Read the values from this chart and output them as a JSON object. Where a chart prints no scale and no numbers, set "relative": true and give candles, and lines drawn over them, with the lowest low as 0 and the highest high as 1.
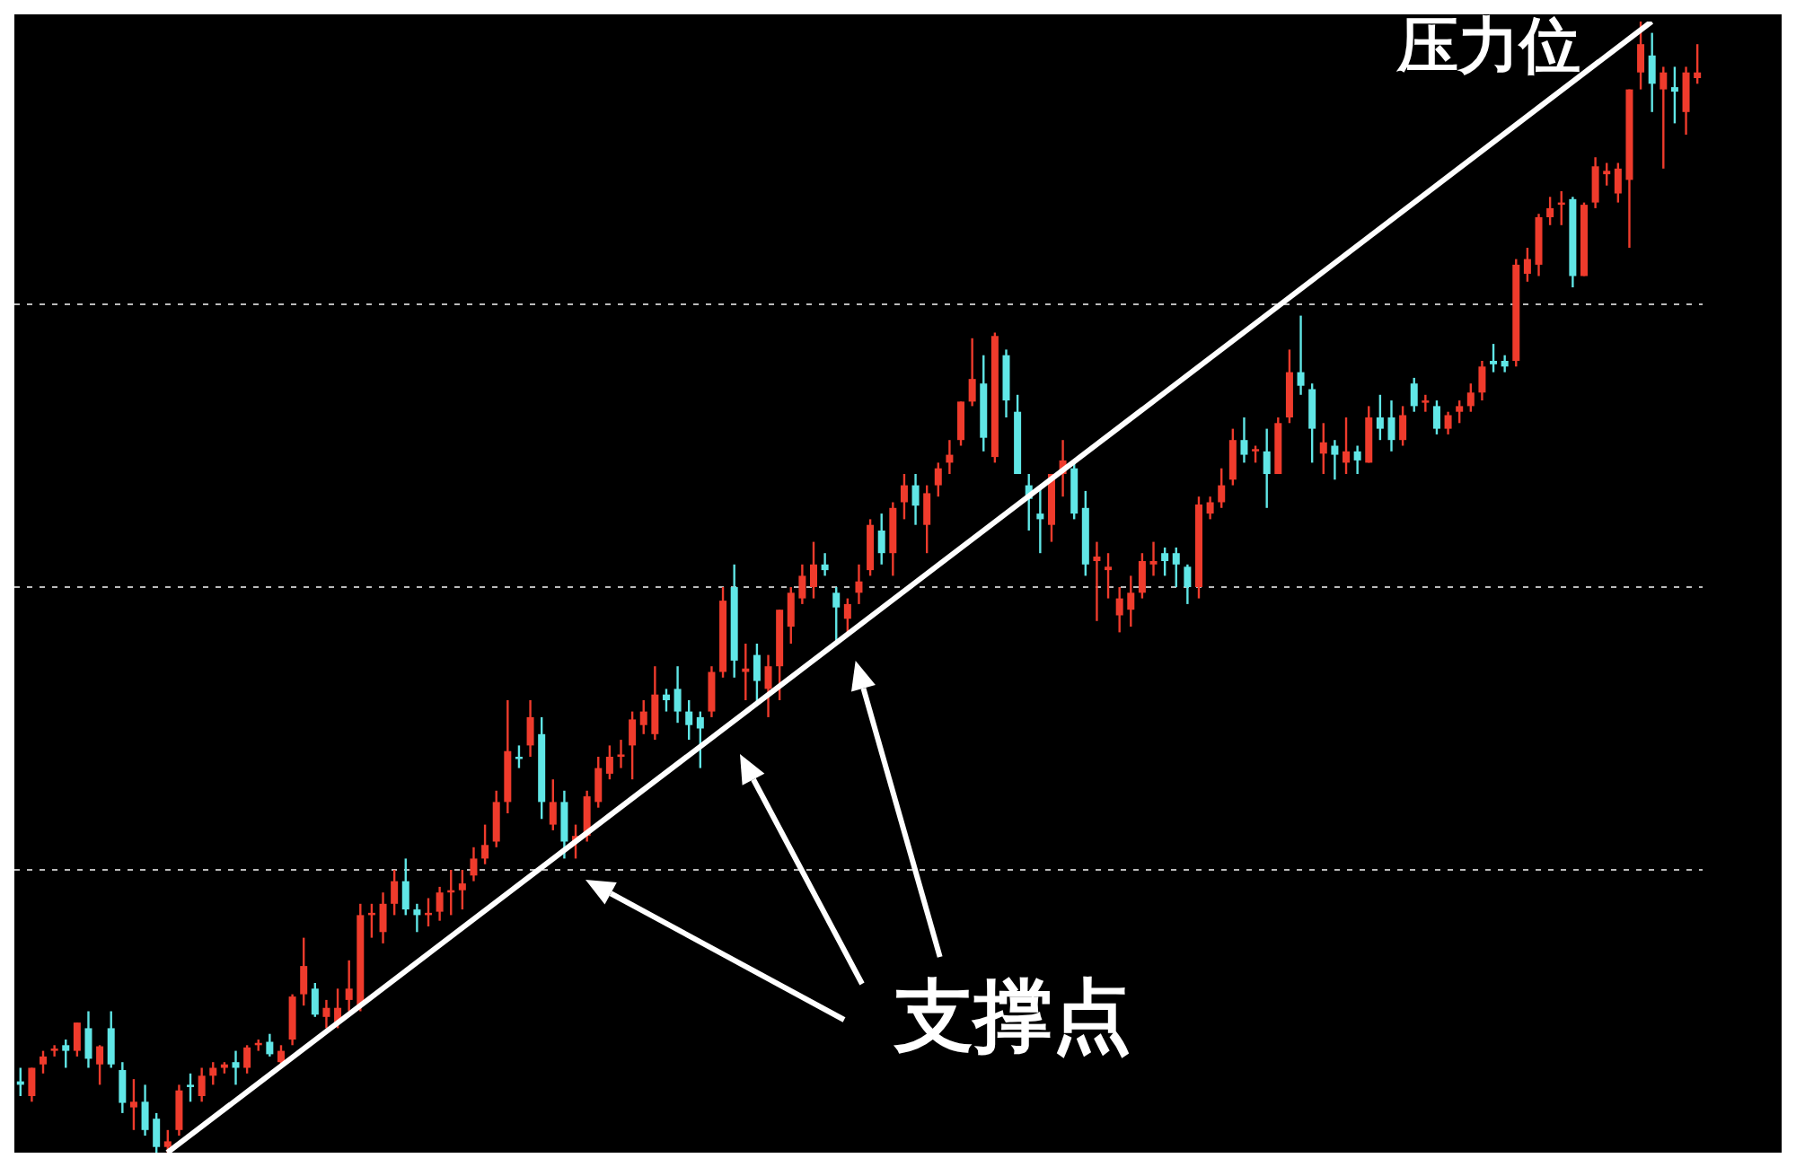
{
  "chart_data": {
    "type": "candlestick",
    "relative": true,
    "grid": "y",
    "categories": [
      null,
      null,
      null,
      null,
      null,
      null,
      null,
      null,
      null,
      null,
      null,
      null,
      null,
      null,
      null,
      null,
      null,
      null,
      null,
      null,
      null,
      null,
      null,
      null,
      null,
      null,
      null,
      null,
      null,
      null,
      null,
      null,
      null,
      null,
      null,
      null,
      null,
      null,
      null,
      null,
      null,
      null,
      null,
      null,
      null,
      null,
      null,
      null,
      null,
      null,
      null,
      null,
      null,
      null,
      null,
      null,
      null,
      null,
      null,
      null,
      null,
      null,
      null,
      null,
      null,
      null,
      null,
      null,
      null,
      null,
      null,
      null,
      null,
      null,
      null,
      null,
      null,
      null,
      null,
      null,
      null,
      null,
      null,
      null,
      null,
      null,
      null,
      null,
      null,
      null,
      null,
      null,
      null,
      null,
      null,
      null,
      null,
      null,
      null,
      null,
      null,
      null,
      null,
      null,
      null,
      null,
      null,
      null,
      null,
      null,
      null,
      null,
      null,
      null,
      null,
      null,
      null,
      null,
      null,
      null,
      null,
      null,
      null,
      null,
      null,
      null,
      null,
      null,
      null,
      null,
      null,
      null,
      null,
      null,
      null,
      null,
      null,
      null,
      null,
      null,
      null,
      null,
      null,
      null,
      null,
      null,
      null,
      null,
      null
    ],
    "ohlc": [
      [
        0.063,
        0.075,
        0.05,
        0.06
      ],
      [
        0.05,
        0.075,
        0.045,
        0.075
      ],
      [
        0.078,
        0.09,
        0.07,
        0.085
      ],
      [
        0.09,
        0.095,
        0.085,
        0.092
      ],
      [
        0.095,
        0.1,
        0.075,
        0.09
      ],
      [
        0.09,
        0.115,
        0.085,
        0.115
      ],
      [
        0.11,
        0.125,
        0.075,
        0.083
      ],
      [
        0.078,
        0.095,
        0.06,
        0.094
      ],
      [
        0.11,
        0.125,
        0.075,
        0.078
      ],
      [
        0.073,
        0.08,
        0.035,
        0.044
      ],
      [
        0.04,
        0.065,
        0.02,
        0.045
      ],
      [
        0.045,
        0.06,
        0.015,
        0.02
      ],
      [
        0.03,
        0.035,
        0.0,
        0.005
      ],
      [
        0.005,
        0.02,
        0.0,
        0.01
      ],
      [
        0.02,
        0.06,
        0.015,
        0.055
      ],
      [
        0.06,
        0.07,
        0.045,
        0.058
      ],
      [
        0.05,
        0.075,
        0.045,
        0.068
      ],
      [
        0.068,
        0.08,
        0.06,
        0.075
      ],
      [
        0.075,
        0.08,
        0.07,
        0.078
      ],
      [
        0.08,
        0.09,
        0.06,
        0.075
      ],
      [
        0.075,
        0.095,
        0.07,
        0.093
      ],
      [
        0.095,
        0.1,
        0.09,
        0.097
      ],
      [
        0.098,
        0.105,
        0.085,
        0.087
      ],
      [
        0.08,
        0.095,
        0.075,
        0.09
      ],
      [
        0.1,
        0.14,
        0.095,
        0.138
      ],
      [
        0.14,
        0.19,
        0.13,
        0.165
      ],
      [
        0.145,
        0.15,
        0.12,
        0.122
      ],
      [
        0.12,
        0.135,
        0.11,
        0.128
      ],
      [
        0.115,
        0.145,
        0.11,
        0.128
      ],
      [
        0.135,
        0.17,
        0.125,
        0.145
      ],
      [
        0.13,
        0.22,
        0.125,
        0.21
      ],
      [
        0.21,
        0.22,
        0.19,
        0.212
      ],
      [
        0.195,
        0.23,
        0.185,
        0.22
      ],
      [
        0.22,
        0.25,
        0.21,
        0.24
      ],
      [
        0.24,
        0.26,
        0.21,
        0.215
      ],
      [
        0.215,
        0.22,
        0.195,
        0.21
      ],
      [
        0.21,
        0.225,
        0.2,
        0.212
      ],
      [
        0.213,
        0.235,
        0.205,
        0.23
      ],
      [
        0.23,
        0.25,
        0.21,
        0.232
      ],
      [
        0.232,
        0.25,
        0.215,
        0.238
      ],
      [
        0.245,
        0.27,
        0.24,
        0.26
      ],
      [
        0.26,
        0.29,
        0.255,
        0.272
      ],
      [
        0.275,
        0.32,
        0.27,
        0.31
      ],
      [
        0.31,
        0.4,
        0.3,
        0.355
      ],
      [
        0.35,
        0.36,
        0.34,
        0.348
      ],
      [
        0.36,
        0.4,
        0.35,
        0.385
      ],
      [
        0.37,
        0.385,
        0.295,
        0.31
      ],
      [
        0.29,
        0.33,
        0.285,
        0.31
      ],
      [
        0.31,
        0.32,
        0.26,
        0.275
      ],
      [
        0.275,
        0.29,
        0.26,
        0.28
      ],
      [
        0.28,
        0.32,
        0.275,
        0.315
      ],
      [
        0.31,
        0.35,
        0.305,
        0.34
      ],
      [
        0.335,
        0.36,
        0.33,
        0.35
      ],
      [
        0.35,
        0.365,
        0.34,
        0.352
      ],
      [
        0.36,
        0.39,
        0.33,
        0.383
      ],
      [
        0.378,
        0.4,
        0.37,
        0.39
      ],
      [
        0.37,
        0.43,
        0.365,
        0.405
      ],
      [
        0.405,
        0.41,
        0.39,
        0.4
      ],
      [
        0.41,
        0.43,
        0.38,
        0.39
      ],
      [
        0.39,
        0.4,
        0.365,
        0.378
      ],
      [
        0.385,
        0.39,
        0.34,
        0.375
      ],
      [
        0.39,
        0.43,
        0.385,
        0.425
      ],
      [
        0.425,
        0.5,
        0.42,
        0.488
      ],
      [
        0.5,
        0.52,
        0.42,
        0.435
      ],
      [
        0.425,
        0.45,
        0.4,
        0.428
      ],
      [
        0.44,
        0.45,
        0.395,
        0.417
      ],
      [
        0.41,
        0.44,
        0.385,
        0.43
      ],
      [
        0.43,
        0.48,
        0.4,
        0.48
      ],
      [
        0.465,
        0.5,
        0.45,
        0.495
      ],
      [
        0.49,
        0.52,
        0.485,
        0.51
      ],
      [
        0.5,
        0.54,
        0.49,
        0.52
      ],
      [
        0.52,
        0.53,
        0.51,
        0.515
      ],
      [
        0.495,
        0.5,
        0.45,
        0.482
      ],
      [
        0.472,
        0.49,
        0.46,
        0.485
      ],
      [
        0.495,
        0.52,
        0.485,
        0.505
      ],
      [
        0.515,
        0.56,
        0.51,
        0.555
      ],
      [
        0.55,
        0.565,
        0.52,
        0.53
      ],
      [
        0.53,
        0.575,
        0.51,
        0.57
      ],
      [
        0.575,
        0.6,
        0.56,
        0.59
      ],
      [
        0.59,
        0.6,
        0.555,
        0.572
      ],
      [
        0.555,
        0.59,
        0.53,
        0.583
      ],
      [
        0.59,
        0.61,
        0.58,
        0.605
      ],
      [
        0.61,
        0.63,
        0.6,
        0.617
      ],
      [
        0.63,
        0.664,
        0.625,
        0.664
      ],
      [
        0.664,
        0.72,
        0.66,
        0.684
      ],
      [
        0.68,
        0.705,
        0.62,
        0.632
      ],
      [
        0.615,
        0.725,
        0.61,
        0.722
      ],
      [
        0.705,
        0.71,
        0.65,
        0.665
      ],
      [
        0.655,
        0.67,
        0.6,
        0.6
      ],
      [
        0.59,
        0.6,
        0.55,
        0.578
      ],
      [
        0.565,
        0.59,
        0.53,
        0.56
      ],
      [
        0.555,
        0.6,
        0.54,
        0.6
      ],
      [
        0.6,
        0.63,
        0.58,
        0.612
      ],
      [
        0.605,
        0.61,
        0.56,
        0.565
      ],
      [
        0.57,
        0.585,
        0.51,
        0.52
      ],
      [
        0.523,
        0.54,
        0.47,
        0.527
      ],
      [
        0.515,
        0.53,
        0.49,
        0.518
      ],
      [
        0.475,
        0.5,
        0.46,
        0.49
      ],
      [
        0.48,
        0.51,
        0.465,
        0.495
      ],
      [
        0.495,
        0.53,
        0.49,
        0.523
      ],
      [
        0.52,
        0.54,
        0.51,
        0.523
      ],
      [
        0.53,
        0.535,
        0.51,
        0.523
      ],
      [
        0.53,
        0.535,
        0.5,
        0.52
      ],
      [
        0.518,
        0.52,
        0.485,
        0.5
      ],
      [
        0.5,
        0.58,
        0.49,
        0.573
      ],
      [
        0.565,
        0.58,
        0.56,
        0.575
      ],
      [
        0.575,
        0.605,
        0.57,
        0.59
      ],
      [
        0.595,
        0.64,
        0.59,
        0.63
      ],
      [
        0.63,
        0.65,
        0.61,
        0.617
      ],
      [
        0.62,
        0.625,
        0.61,
        0.622
      ],
      [
        0.62,
        0.64,
        0.57,
        0.6
      ],
      [
        0.6,
        0.65,
        0.6,
        0.645
      ],
      [
        0.65,
        0.71,
        0.645,
        0.69
      ],
      [
        0.69,
        0.74,
        0.67,
        0.678
      ],
      [
        0.675,
        0.68,
        0.61,
        0.64
      ],
      [
        0.618,
        0.645,
        0.6,
        0.628
      ],
      [
        0.625,
        0.63,
        0.595,
        0.617
      ],
      [
        0.61,
        0.65,
        0.6,
        0.62
      ],
      [
        0.62,
        0.625,
        0.6,
        0.612
      ],
      [
        0.61,
        0.66,
        0.61,
        0.65
      ],
      [
        0.65,
        0.67,
        0.63,
        0.64
      ],
      [
        0.65,
        0.665,
        0.62,
        0.63
      ],
      [
        0.63,
        0.66,
        0.625,
        0.652
      ],
      [
        0.68,
        0.685,
        0.655,
        0.66
      ],
      [
        0.663,
        0.67,
        0.655,
        0.665
      ],
      [
        0.66,
        0.665,
        0.635,
        0.64
      ],
      [
        0.64,
        0.655,
        0.635,
        0.652
      ],
      [
        0.655,
        0.665,
        0.645,
        0.66
      ],
      [
        0.66,
        0.68,
        0.655,
        0.672
      ],
      [
        0.672,
        0.7,
        0.665,
        0.695
      ],
      [
        0.7,
        0.715,
        0.69,
        0.697
      ],
      [
        0.7,
        0.705,
        0.69,
        0.695
      ],
      [
        0.7,
        0.79,
        0.695,
        0.785
      ],
      [
        0.777,
        0.8,
        0.77,
        0.79
      ],
      [
        0.785,
        0.83,
        0.775,
        0.827
      ],
      [
        0.827,
        0.845,
        0.82,
        0.835
      ],
      [
        0.838,
        0.85,
        0.82,
        0.84
      ],
      [
        0.843,
        0.845,
        0.765,
        0.775
      ],
      [
        0.775,
        0.84,
        0.775,
        0.838
      ],
      [
        0.84,
        0.88,
        0.835,
        0.872
      ],
      [
        0.865,
        0.875,
        0.855,
        0.868
      ],
      [
        0.848,
        0.875,
        0.84,
        0.87
      ],
      [
        0.86,
        0.94,
        0.8,
        0.94
      ],
      [
        0.955,
        1.0,
        0.94,
        0.98
      ],
      [
        0.97,
        0.99,
        0.92,
        0.945
      ],
      [
        0.94,
        0.96,
        0.87,
        0.955
      ],
      [
        0.942,
        0.96,
        0.91,
        0.938
      ],
      [
        0.92,
        0.96,
        0.9,
        0.955
      ],
      [
        0.95,
        0.98,
        0.945,
        0.955
      ]
    ],
    "colors": [
      "#60e6e6",
      "#ef3b2c",
      "#ef3b2c",
      "#ef3b2c",
      "#60e6e6",
      "#ef3b2c",
      "#60e6e6",
      "#ef3b2c",
      "#60e6e6",
      "#60e6e6",
      "#ef3b2c",
      "#60e6e6",
      "#60e6e6",
      "#ef3b2c",
      "#ef3b2c",
      "#60e6e6",
      "#ef3b2c",
      "#ef3b2c",
      "#ef3b2c",
      "#60e6e6",
      "#ef3b2c",
      "#ef3b2c",
      "#60e6e6",
      "#ef3b2c",
      "#ef3b2c",
      "#ef3b2c",
      "#60e6e6",
      "#ef3b2c",
      "#ef3b2c",
      "#ef3b2c",
      "#ef3b2c",
      "#ef3b2c",
      "#ef3b2c",
      "#ef3b2c",
      "#60e6e6",
      "#60e6e6",
      "#ef3b2c",
      "#ef3b2c",
      "#ef3b2c",
      "#ef3b2c",
      "#ef3b2c",
      "#ef3b2c",
      "#ef3b2c",
      "#ef3b2c",
      "#60e6e6",
      "#ef3b2c",
      "#60e6e6",
      "#ef3b2c",
      "#60e6e6",
      "#ef3b2c",
      "#ef3b2c",
      "#ef3b2c",
      "#ef3b2c",
      "#ef3b2c",
      "#ef3b2c",
      "#ef3b2c",
      "#ef3b2c",
      "#60e6e6",
      "#60e6e6",
      "#60e6e6",
      "#60e6e6",
      "#ef3b2c",
      "#ef3b2c",
      "#60e6e6",
      "#ef3b2c",
      "#60e6e6",
      "#ef3b2c",
      "#ef3b2c",
      "#ef3b2c",
      "#ef3b2c",
      "#ef3b2c",
      "#60e6e6",
      "#60e6e6",
      "#ef3b2c",
      "#ef3b2c",
      "#ef3b2c",
      "#60e6e6",
      "#ef3b2c",
      "#ef3b2c",
      "#60e6e6",
      "#ef3b2c",
      "#ef3b2c",
      "#ef3b2c",
      "#ef3b2c",
      "#ef3b2c",
      "#60e6e6",
      "#ef3b2c",
      "#60e6e6",
      "#60e6e6",
      "#60e6e6",
      "#60e6e6",
      "#ef3b2c",
      "#ef3b2c",
      "#60e6e6",
      "#60e6e6",
      "#ef3b2c",
      "#ef3b2c",
      "#ef3b2c",
      "#ef3b2c",
      "#ef3b2c",
      "#ef3b2c",
      "#60e6e6",
      "#60e6e6",
      "#60e6e6",
      "#ef3b2c",
      "#ef3b2c",
      "#ef3b2c",
      "#ef3b2c",
      "#60e6e6",
      "#ef3b2c",
      "#60e6e6",
      "#ef3b2c",
      "#ef3b2c",
      "#60e6e6",
      "#60e6e6",
      "#ef3b2c",
      "#60e6e6",
      "#ef3b2c",
      "#60e6e6",
      "#ef3b2c",
      "#60e6e6",
      "#60e6e6",
      "#ef3b2c",
      "#60e6e6",
      "#ef3b2c",
      "#60e6e6",
      "#ef3b2c",
      "#ef3b2c",
      "#ef3b2c",
      "#ef3b2c",
      "#60e6e6",
      "#60e6e6",
      "#ef3b2c",
      "#ef3b2c",
      "#ef3b2c",
      "#ef3b2c",
      "#ef3b2c",
      "#60e6e6",
      "#ef3b2c",
      "#ef3b2c",
      "#ef3b2c",
      "#ef3b2c",
      "#ef3b2c",
      "#ef3b2c",
      "#60e6e6",
      "#ef3b2c",
      "#60e6e6",
      "#ef3b2c",
      "#ef3b2c"
    ],
    "series": [
      {
        "type": "line",
        "color": "#ffffff",
        "values": [
          null,
          null,
          null,
          null,
          null,
          null,
          null,
          null,
          null,
          null,
          null,
          null,
          null,
          0.0,
          null,
          null,
          null,
          null,
          null,
          null,
          null,
          null,
          null,
          null,
          null,
          null,
          null,
          null,
          null,
          null,
          null,
          null,
          null,
          null,
          null,
          null,
          null,
          null,
          null,
          null,
          null,
          null,
          null,
          null,
          null,
          null,
          null,
          null,
          null,
          null,
          null,
          null,
          null,
          null,
          null,
          null,
          null,
          null,
          null,
          null,
          null,
          null,
          null,
          null,
          null,
          null,
          null,
          null,
          null,
          null,
          null,
          null,
          null,
          null,
          null,
          null,
          null,
          null,
          null,
          null,
          null,
          null,
          null,
          null,
          null,
          null,
          null,
          null,
          null,
          null,
          null,
          null,
          null,
          null,
          null,
          null,
          null,
          null,
          null,
          null,
          null,
          null,
          null,
          null,
          null,
          null,
          null,
          null,
          null,
          null,
          null,
          null,
          null,
          null,
          null,
          null,
          null,
          null,
          null,
          null,
          null,
          null,
          null,
          null,
          null,
          null,
          null,
          null,
          null,
          null,
          null,
          null,
          null,
          null,
          null,
          null,
          null,
          null,
          null,
          null,
          null,
          null,
          null,
          null,
          1.0,
          null,
          null,
          null,
          null
        ]
      }
    ],
    "annotations": [
      "压力位",
      "支撑点"
    ]
  }
}
